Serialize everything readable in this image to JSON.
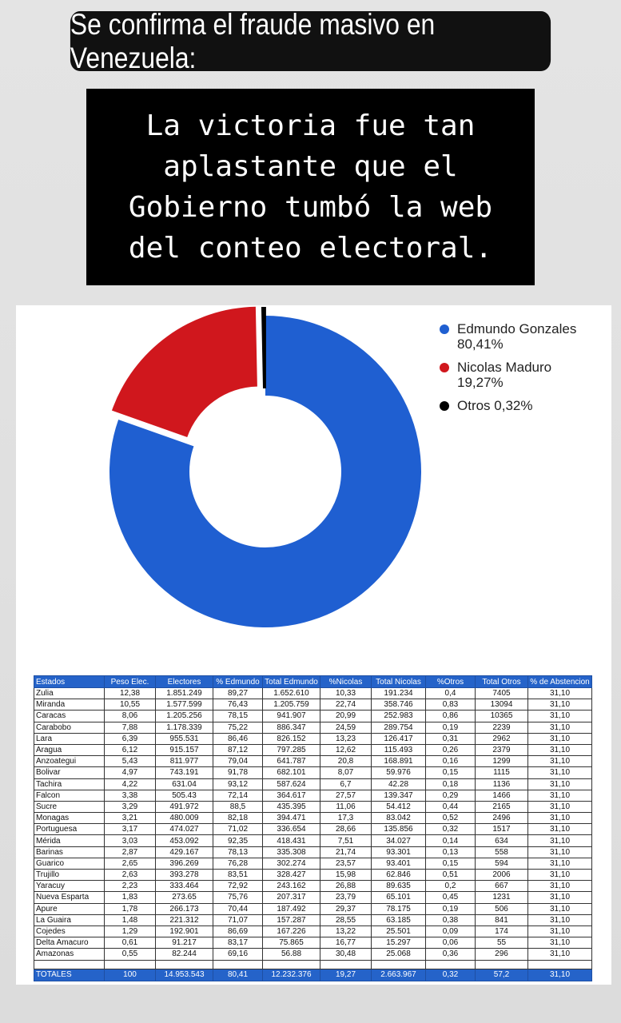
{
  "banner": {
    "title": "Se confirma el fraude masivo en Venezuela:"
  },
  "quote": {
    "text": "La victoria fue tan\naplastante que el\nGobierno tumbó la web\ndel conteo electoral."
  },
  "chart_data": {
    "type": "pie",
    "categories": [
      "Edmundo Gonzales",
      "Nicolas Maduro",
      "Otros"
    ],
    "values": [
      80.41,
      19.27,
      0.32
    ],
    "colors": [
      "#1f5fd1",
      "#d0171d",
      "#000000"
    ],
    "legend": [
      {
        "label": "Edmundo Gonzales 80,41%",
        "color": "#1f5fd1"
      },
      {
        "label": "Nicolas Maduro 19,27%",
        "color": "#d0171d"
      },
      {
        "label": "Otros 0,32%",
        "color": "#000000"
      }
    ]
  },
  "table": {
    "headers": [
      "Estados",
      "Peso Elec.",
      "Electores",
      "% Edmundo",
      "Total Edmundo",
      "%Nicolas",
      "Total Nicolas",
      "%Otros",
      "Total Otros",
      "% de Abstencion"
    ],
    "rows": [
      [
        "Zulia",
        "12,38",
        "1.851.249",
        "89,27",
        "1.652.610",
        "10,33",
        "191.234",
        "0,4",
        "7405",
        "31,10"
      ],
      [
        "Miranda",
        "10,55",
        "1.577.599",
        "76,43",
        "1.205.759",
        "22,74",
        "358.746",
        "0,83",
        "13094",
        "31,10"
      ],
      [
        "Caracas",
        "8,06",
        "1.205.256",
        "78,15",
        "941.907",
        "20,99",
        "252.983",
        "0,86",
        "10365",
        "31,10"
      ],
      [
        "Carabobo",
        "7,88",
        "1.178.339",
        "75,22",
        "886.347",
        "24,59",
        "289.754",
        "0,19",
        "2239",
        "31,10"
      ],
      [
        "Lara",
        "6,39",
        "955.531",
        "86,46",
        "826.152",
        "13,23",
        "126.417",
        "0,31",
        "2962",
        "31,10"
      ],
      [
        "Aragua",
        "6,12",
        "915.157",
        "87,12",
        "797.285",
        "12,62",
        "115.493",
        "0,26",
        "2379",
        "31,10"
      ],
      [
        "Anzoategui",
        "5,43",
        "811.977",
        "79,04",
        "641.787",
        "20,8",
        "168.891",
        "0,16",
        "1299",
        "31,10"
      ],
      [
        "Bolivar",
        "4,97",
        "743.191",
        "91,78",
        "682.101",
        "8,07",
        "59.976",
        "0,15",
        "1115",
        "31,10"
      ],
      [
        "Tachira",
        "4,22",
        "631.04",
        "93,12",
        "587.624",
        "6,7",
        "42.28",
        "0,18",
        "1136",
        "31,10"
      ],
      [
        "Falcon",
        "3,38",
        "505.43",
        "72,14",
        "364.617",
        "27,57",
        "139.347",
        "0,29",
        "1466",
        "31,10"
      ],
      [
        "Sucre",
        "3,29",
        "491.972",
        "88,5",
        "435.395",
        "11,06",
        "54.412",
        "0,44",
        "2165",
        "31,10"
      ],
      [
        "Monagas",
        "3,21",
        "480.009",
        "82,18",
        "394.471",
        "17,3",
        "83.042",
        "0,52",
        "2496",
        "31,10"
      ],
      [
        "Portuguesa",
        "3,17",
        "474.027",
        "71,02",
        "336.654",
        "28,66",
        "135.856",
        "0,32",
        "1517",
        "31,10"
      ],
      [
        "Mérida",
        "3,03",
        "453.092",
        "92,35",
        "418.431",
        "7,51",
        "34.027",
        "0,14",
        "634",
        "31,10"
      ],
      [
        "Barinas",
        "2,87",
        "429.167",
        "78,13",
        "335.308",
        "21,74",
        "93.301",
        "0,13",
        "558",
        "31,10"
      ],
      [
        "Guarico",
        "2,65",
        "396.269",
        "76,28",
        "302.274",
        "23,57",
        "93.401",
        "0,15",
        "594",
        "31,10"
      ],
      [
        "Trujillo",
        "2,63",
        "393.278",
        "83,51",
        "328.427",
        "15,98",
        "62.846",
        "0,51",
        "2006",
        "31,10"
      ],
      [
        "Yaracuy",
        "2,23",
        "333.464",
        "72,92",
        "243.162",
        "26,88",
        "89.635",
        "0,2",
        "667",
        "31,10"
      ],
      [
        "Nueva Esparta",
        "1,83",
        "273.65",
        "75,76",
        "207.317",
        "23,79",
        "65.101",
        "0,45",
        "1231",
        "31,10"
      ],
      [
        "Apure",
        "1,78",
        "266.173",
        "70,44",
        "187.492",
        "29,37",
        "78.175",
        "0,19",
        "506",
        "31,10"
      ],
      [
        "La Guaira",
        "1,48",
        "221.312",
        "71,07",
        "157.287",
        "28,55",
        "63.185",
        "0,38",
        "841",
        "31,10"
      ],
      [
        "Cojedes",
        "1,29",
        "192.901",
        "86,69",
        "167.226",
        "13,22",
        "25.501",
        "0,09",
        "174",
        "31,10"
      ],
      [
        "Delta Amacuro",
        "0,61",
        "91.217",
        "83,17",
        "75.865",
        "16,77",
        "15.297",
        "0,06",
        "55",
        "31,10"
      ],
      [
        "Amazonas",
        "0,55",
        "82.244",
        "69,16",
        "56.88",
        "30,48",
        "25.068",
        "0,36",
        "296",
        "31,10"
      ]
    ],
    "totals": [
      "TOTALES",
      "100",
      "14.953.543",
      "80,41",
      "12.232.376",
      "19,27",
      "2.663.967",
      "0,32",
      "57,2",
      "31,10"
    ]
  }
}
